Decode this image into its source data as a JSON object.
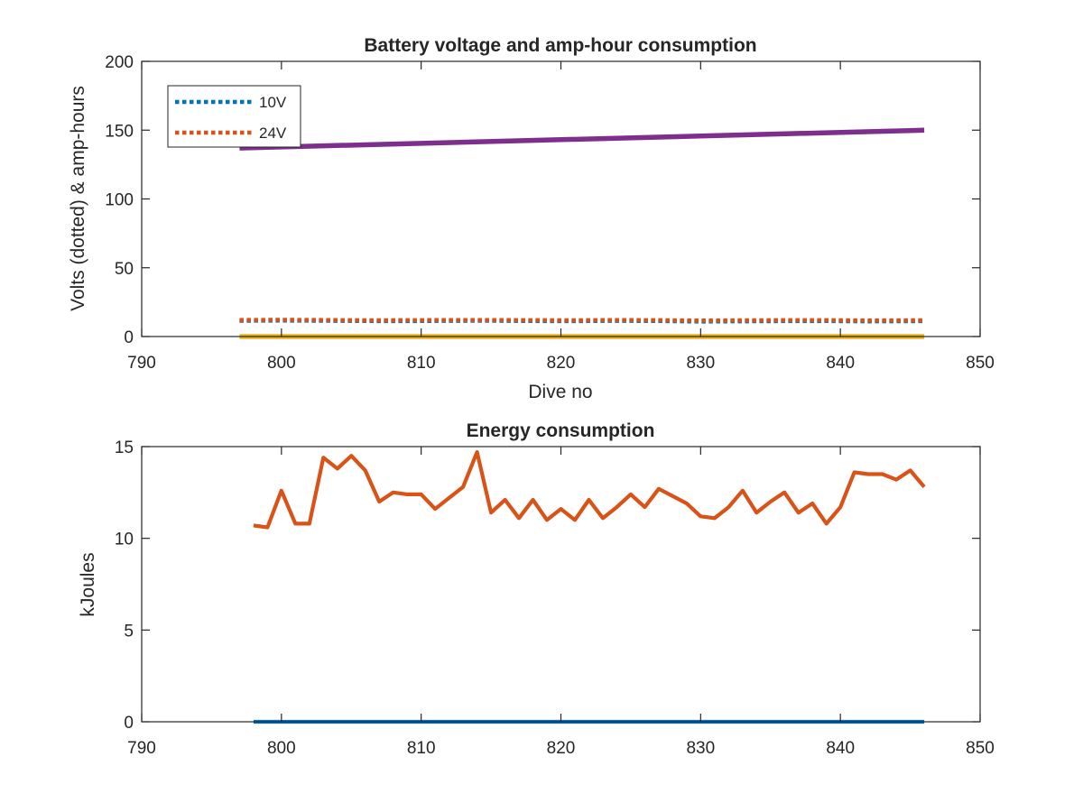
{
  "chart_data": [
    {
      "type": "line",
      "title": "Battery voltage and amp-hour consumption",
      "xlabel": "Dive no",
      "ylabel": "Volts (dotted) & amp-hours",
      "xlim": [
        790,
        850
      ],
      "ylim": [
        0,
        200
      ],
      "xticks": [
        790,
        800,
        810,
        820,
        830,
        840,
        850
      ],
      "yticks": [
        0,
        50,
        100,
        150,
        200
      ],
      "grid": false,
      "legend_position": "top-left",
      "series": [
        {
          "name": "10V",
          "color": "#0072BD",
          "style": "dotted",
          "in_legend": true,
          "x": [
            797,
            800,
            803,
            806,
            809,
            812,
            815,
            818,
            821,
            824,
            827,
            830,
            833,
            836,
            839,
            842,
            846
          ],
          "y": [
            11.5,
            11.6,
            11.5,
            11.3,
            11.2,
            11.4,
            11.5,
            11.3,
            11.2,
            11.4,
            11.3,
            10.9,
            11.1,
            11.2,
            11.3,
            11.0,
            11.2
          ]
        },
        {
          "name": "24V",
          "color": "#D95319",
          "style": "dotted",
          "in_legend": true,
          "x": [
            797,
            800,
            803,
            806,
            809,
            812,
            815,
            818,
            821,
            824,
            827,
            830,
            833,
            836,
            839,
            842,
            846
          ],
          "y": [
            12.0,
            12.1,
            12.0,
            11.8,
            11.9,
            12.0,
            12.0,
            11.9,
            11.8,
            12.0,
            11.9,
            11.6,
            11.8,
            11.9,
            11.9,
            11.7,
            11.8
          ]
        },
        {
          "name": "",
          "color": "#EDB120",
          "style": "solid",
          "in_legend": false,
          "x": [
            797,
            846
          ],
          "y": [
            0,
            0
          ]
        },
        {
          "name": "",
          "color": "#7E2F8E",
          "style": "solid",
          "in_legend": false,
          "x": [
            797,
            846
          ],
          "y": [
            137,
            150
          ]
        }
      ]
    },
    {
      "type": "line",
      "title": "Energy consumption",
      "xlabel": "",
      "ylabel": "kJoules",
      "xlim": [
        790,
        850
      ],
      "ylim": [
        0,
        15
      ],
      "xticks": [
        790,
        800,
        810,
        820,
        830,
        840,
        850
      ],
      "yticks": [
        0,
        5,
        10,
        15
      ],
      "grid": false,
      "series": [
        {
          "name": "",
          "color": "#0072BD",
          "style": "solid",
          "x": [
            798,
            846
          ],
          "y": [
            0,
            0
          ]
        },
        {
          "name": "",
          "color": "#D95319",
          "style": "solid",
          "x": [
            798,
            799,
            800,
            801,
            802,
            803,
            804,
            805,
            806,
            807,
            808,
            809,
            810,
            811,
            812,
            813,
            814,
            815,
            816,
            817,
            818,
            819,
            820,
            821,
            822,
            823,
            824,
            825,
            826,
            827,
            828,
            829,
            830,
            831,
            832,
            833,
            834,
            835,
            836,
            837,
            838,
            839,
            840,
            841,
            842,
            843,
            844,
            845,
            846
          ],
          "y": [
            10.7,
            10.6,
            12.6,
            10.8,
            10.8,
            14.4,
            13.8,
            14.5,
            13.7,
            12.0,
            12.5,
            12.4,
            12.4,
            11.6,
            12.2,
            12.8,
            14.7,
            11.4,
            12.1,
            11.1,
            12.1,
            11.0,
            11.6,
            11.0,
            12.1,
            11.1,
            11.7,
            12.4,
            11.7,
            12.7,
            12.3,
            11.9,
            11.2,
            11.1,
            11.7,
            12.6,
            11.4,
            12.0,
            12.5,
            11.4,
            11.9,
            10.8,
            11.7,
            13.6,
            13.5,
            13.5,
            13.2,
            13.7,
            12.8
          ]
        }
      ]
    }
  ]
}
